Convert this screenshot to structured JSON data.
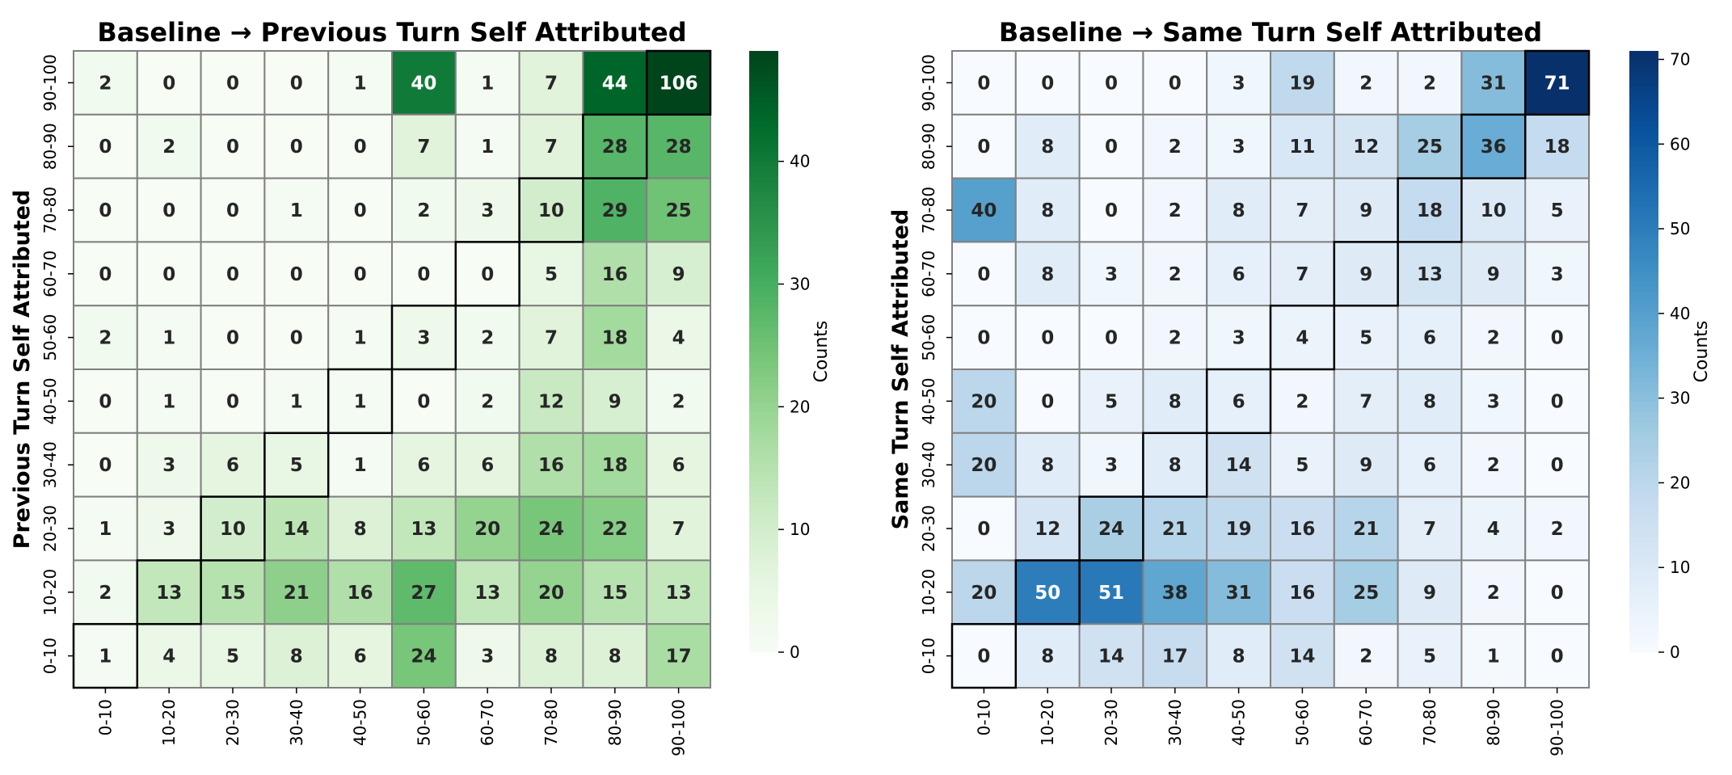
{
  "chart_data": [
    {
      "type": "heatmap",
      "title": "Baseline → Previous Turn Self Attributed",
      "xlabel": "Baseline",
      "ylabel": "Previous Turn Self Attributed",
      "x_categories": [
        "0-10",
        "10-20",
        "20-30",
        "30-40",
        "40-50",
        "50-60",
        "60-70",
        "70-80",
        "80-90",
        "90-100"
      ],
      "y_categories": [
        "90-100",
        "80-90",
        "70-80",
        "60-70",
        "50-60",
        "40-50",
        "30-40",
        "20-30",
        "10-20",
        "0-10"
      ],
      "values": [
        [
          2,
          0,
          0,
          0,
          1,
          40,
          1,
          7,
          44,
          106
        ],
        [
          0,
          2,
          0,
          0,
          0,
          7,
          1,
          7,
          28,
          28
        ],
        [
          0,
          0,
          0,
          1,
          0,
          2,
          3,
          10,
          29,
          25
        ],
        [
          0,
          0,
          0,
          0,
          0,
          0,
          0,
          5,
          16,
          9
        ],
        [
          2,
          1,
          0,
          0,
          1,
          3,
          2,
          7,
          18,
          4
        ],
        [
          0,
          1,
          0,
          1,
          1,
          0,
          2,
          12,
          9,
          2
        ],
        [
          0,
          3,
          6,
          5,
          1,
          6,
          6,
          16,
          18,
          6
        ],
        [
          1,
          3,
          10,
          14,
          8,
          13,
          20,
          24,
          22,
          7
        ],
        [
          2,
          13,
          15,
          21,
          16,
          27,
          13,
          20,
          15,
          13
        ],
        [
          1,
          4,
          5,
          8,
          6,
          24,
          3,
          8,
          8,
          17
        ]
      ],
      "color_range": [
        0,
        49
      ],
      "colormap": "Greens",
      "colorbar_label": "Counts",
      "colorbar_ticks": [
        0,
        10,
        20,
        30,
        40
      ],
      "cell_edge_color": "#808080",
      "diagonal_edge_color": "#000000"
    },
    {
      "type": "heatmap",
      "title": "Baseline → Same Turn Self Attributed",
      "xlabel": "Baseline",
      "ylabel": "Same Turn Self Attributed",
      "x_categories": [
        "0-10",
        "10-20",
        "20-30",
        "30-40",
        "40-50",
        "50-60",
        "60-70",
        "70-80",
        "80-90",
        "90-100"
      ],
      "y_categories": [
        "90-100",
        "80-90",
        "70-80",
        "60-70",
        "50-60",
        "40-50",
        "30-40",
        "20-30",
        "10-20",
        "0-10"
      ],
      "values": [
        [
          0,
          0,
          0,
          0,
          3,
          19,
          2,
          2,
          31,
          71
        ],
        [
          0,
          8,
          0,
          2,
          3,
          11,
          12,
          25,
          36,
          18
        ],
        [
          40,
          8,
          0,
          2,
          8,
          7,
          9,
          18,
          10,
          5
        ],
        [
          0,
          8,
          3,
          2,
          6,
          7,
          9,
          13,
          9,
          3
        ],
        [
          0,
          0,
          0,
          2,
          3,
          4,
          5,
          6,
          2,
          0
        ],
        [
          20,
          0,
          5,
          8,
          6,
          2,
          7,
          8,
          3,
          0
        ],
        [
          20,
          8,
          3,
          8,
          14,
          5,
          9,
          6,
          2,
          0
        ],
        [
          0,
          12,
          24,
          21,
          19,
          16,
          21,
          7,
          4,
          2
        ],
        [
          20,
          50,
          51,
          38,
          31,
          16,
          25,
          9,
          2,
          0
        ],
        [
          0,
          8,
          14,
          17,
          8,
          14,
          2,
          5,
          1,
          0
        ]
      ],
      "color_range": [
        0,
        71
      ],
      "colormap": "Blues",
      "colorbar_label": "Counts",
      "colorbar_ticks": [
        0,
        10,
        20,
        30,
        40,
        50,
        60,
        70
      ],
      "cell_edge_color": "#808080",
      "diagonal_edge_color": "#000000"
    }
  ]
}
